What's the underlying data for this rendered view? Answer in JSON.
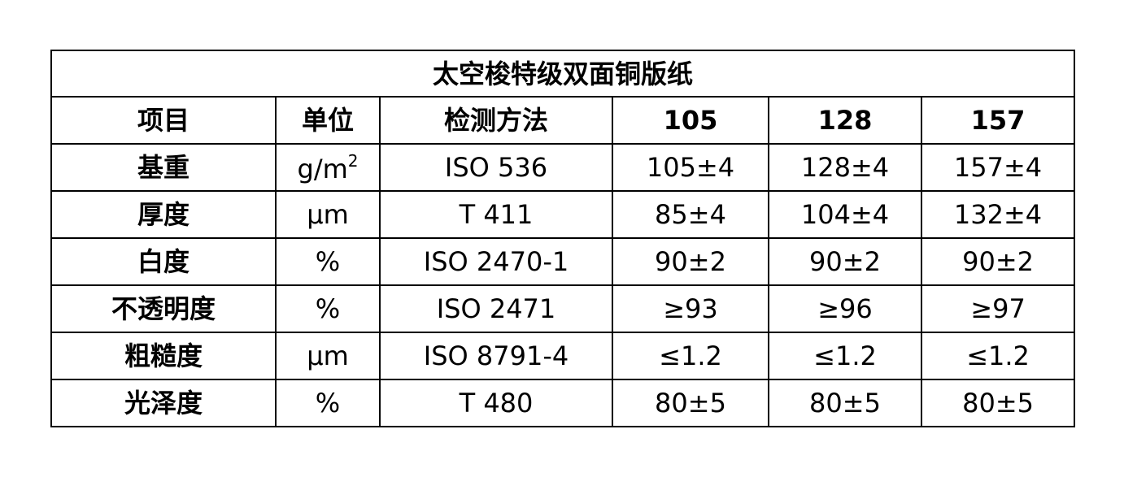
{
  "title": "太空梭特级双面铜版纸",
  "headers": [
    "项目",
    "单位",
    "检测方法",
    "105",
    "128",
    "157"
  ],
  "rows": [
    {
      "item": "基重",
      "unit": "g/m",
      "unit_sup": "2",
      "method": "ISO 536",
      "v105": "105±4",
      "v128": "128±4",
      "v157": "157±4"
    },
    {
      "item": "厚度",
      "unit": "µm",
      "method": "T 411",
      "v105": "85±4",
      "v128": "104±4",
      "v157": "132±4"
    },
    {
      "item": "白度",
      "unit": "%",
      "method": "ISO 2470-1",
      "v105": "90±2",
      "v128": "90±2",
      "v157": "90±2"
    },
    {
      "item": "不透明度",
      "unit": "%",
      "method": "ISO 2471",
      "v105": "≥93",
      "v128": "≥96",
      "v157": "≥97"
    },
    {
      "item": "粗糙度",
      "unit": "µm",
      "method": "ISO 8791-4",
      "v105": "≤1.2",
      "v128": "≤1.2",
      "v157": "≤1.2"
    },
    {
      "item": "光泽度",
      "unit": "%",
      "method": "T 480",
      "v105": "80±5",
      "v128": "80±5",
      "v157": "80±5"
    }
  ]
}
